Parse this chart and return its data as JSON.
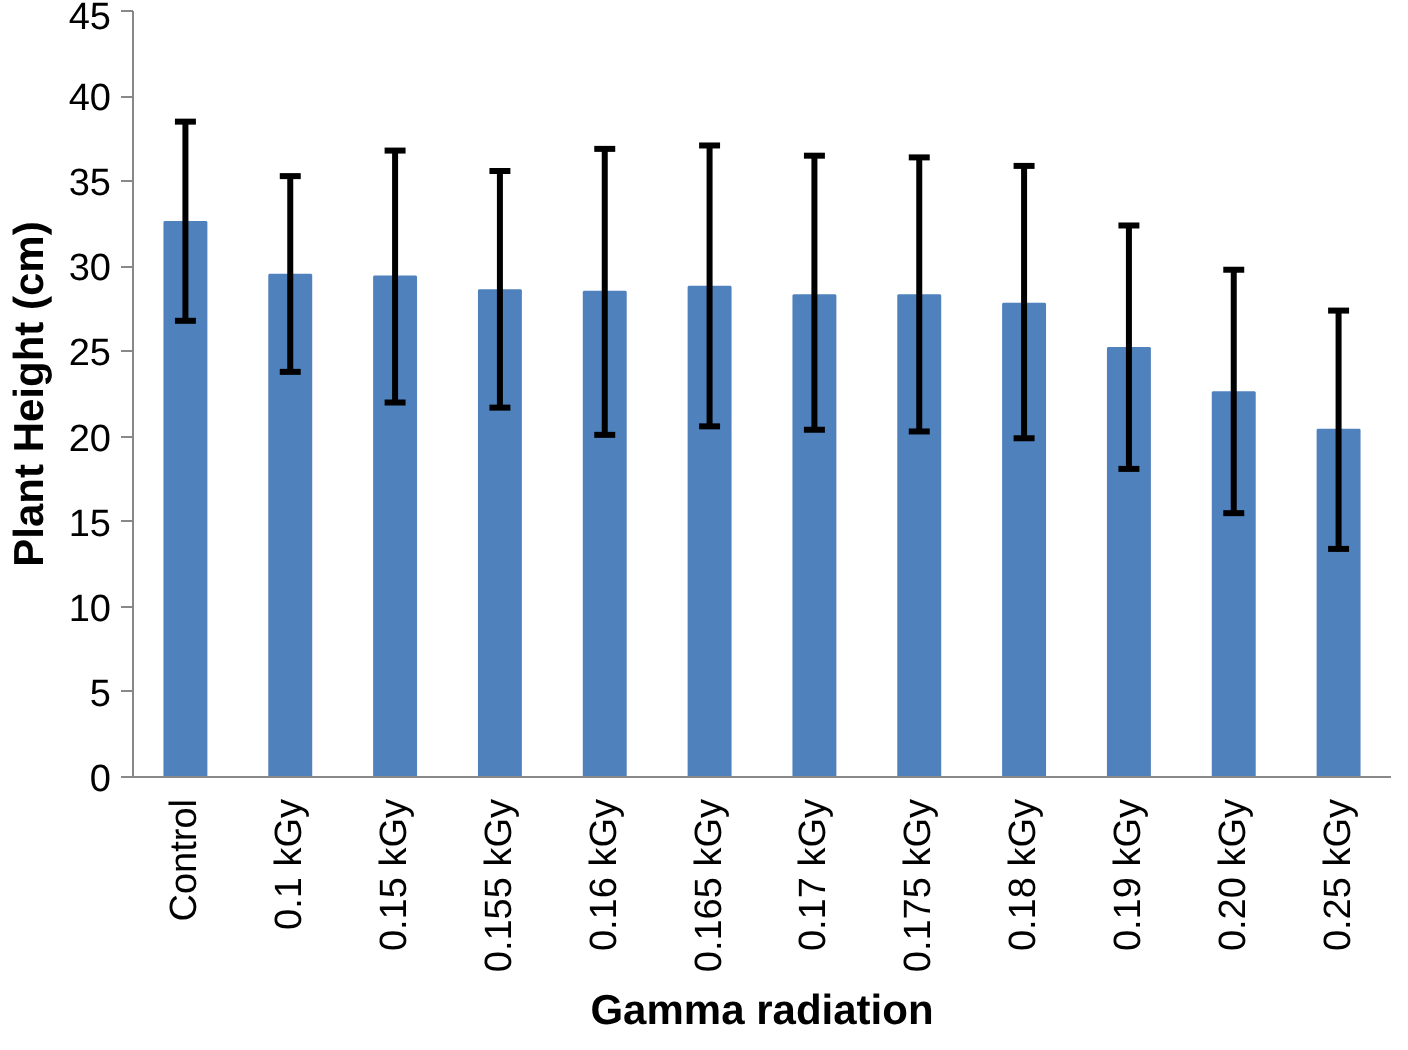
{
  "chart_data": {
    "type": "bar",
    "xlabel": "Gamma radiation",
    "ylabel": "Plant Height (cm)",
    "categories": [
      "Control",
      "0.1 kGy",
      "0.15 kGy",
      "0.155 kGy",
      "0.16 kGy",
      "0.165 kGy",
      "0.17 kGy",
      "0.175 kGy",
      "0.18 kGy",
      "0.19 kGy",
      "0.20 kGy",
      "0.25 kGy"
    ],
    "values": [
      32.6,
      29.5,
      29.4,
      28.6,
      28.5,
      28.8,
      28.3,
      28.3,
      27.8,
      25.2,
      22.6,
      20.4
    ],
    "errors": [
      [
        26.8,
        38.5
      ],
      [
        23.8,
        35.3
      ],
      [
        22.0,
        36.8
      ],
      [
        21.7,
        35.6
      ],
      [
        20.1,
        36.9
      ],
      [
        20.6,
        37.1
      ],
      [
        20.4,
        36.5
      ],
      [
        20.3,
        36.4
      ],
      [
        19.9,
        35.9
      ],
      [
        18.1,
        32.4
      ],
      [
        15.5,
        29.8
      ],
      [
        13.4,
        27.4
      ]
    ],
    "color": "#4f81bd",
    "ylim": [
      0,
      45
    ],
    "yticks": [
      0,
      5,
      10,
      15,
      20,
      25,
      30,
      35,
      40,
      45
    ]
  }
}
